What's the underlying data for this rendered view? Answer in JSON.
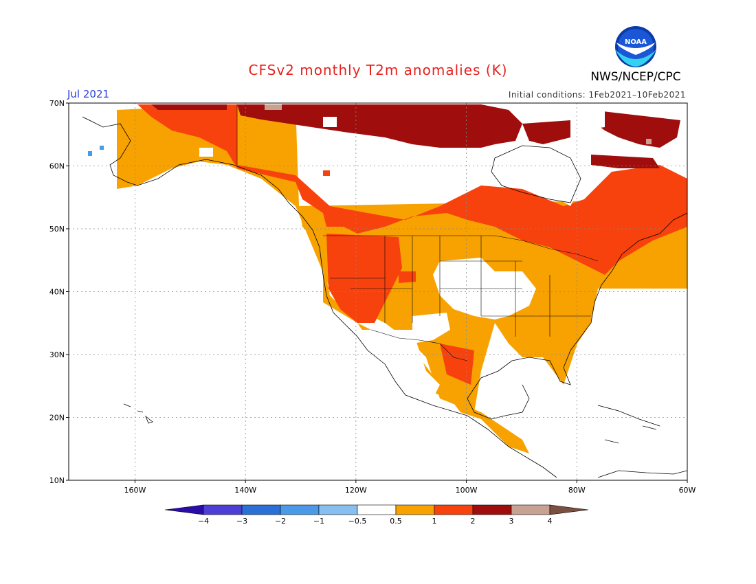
{
  "title": "CFSv2 monthly T2m anomalies (K)",
  "agency": "NWS/NCEP/CPC",
  "logo_text": "NOAA",
  "month": "Jul 2021",
  "initial_conditions": "Initial conditions: 1Feb2021–10Feb2021",
  "map": {
    "lat_labels": [
      "10N",
      "20N",
      "30N",
      "40N",
      "50N",
      "60N",
      "70N"
    ],
    "lon_labels": [
      "160W",
      "140W",
      "120W",
      "100W",
      "80W",
      "60W"
    ],
    "lat_range": [
      10,
      70
    ],
    "lon_range": [
      -172,
      -60
    ]
  },
  "legend": {
    "labels": [
      "-4",
      "-3",
      "-2",
      "-1",
      "-0.5",
      "0.5",
      "1",
      "2",
      "3",
      "4"
    ],
    "colors": [
      "#2a0ca8",
      "#4d3fd6",
      "#2b6fd8",
      "#4a9ae8",
      "#86bff0",
      "#ffffff",
      "#f7a200",
      "#f8420e",
      "#a00d0d",
      "#c7a293",
      "#7a5040"
    ]
  },
  "colors": {
    "title": "#e8201c",
    "month": "#2a3fd8",
    "warm1": "#f7a200",
    "warm2": "#f8420e",
    "warm3": "#a00d0d",
    "warm4": "#c7a293",
    "cool": "#4a9ae8"
  }
}
